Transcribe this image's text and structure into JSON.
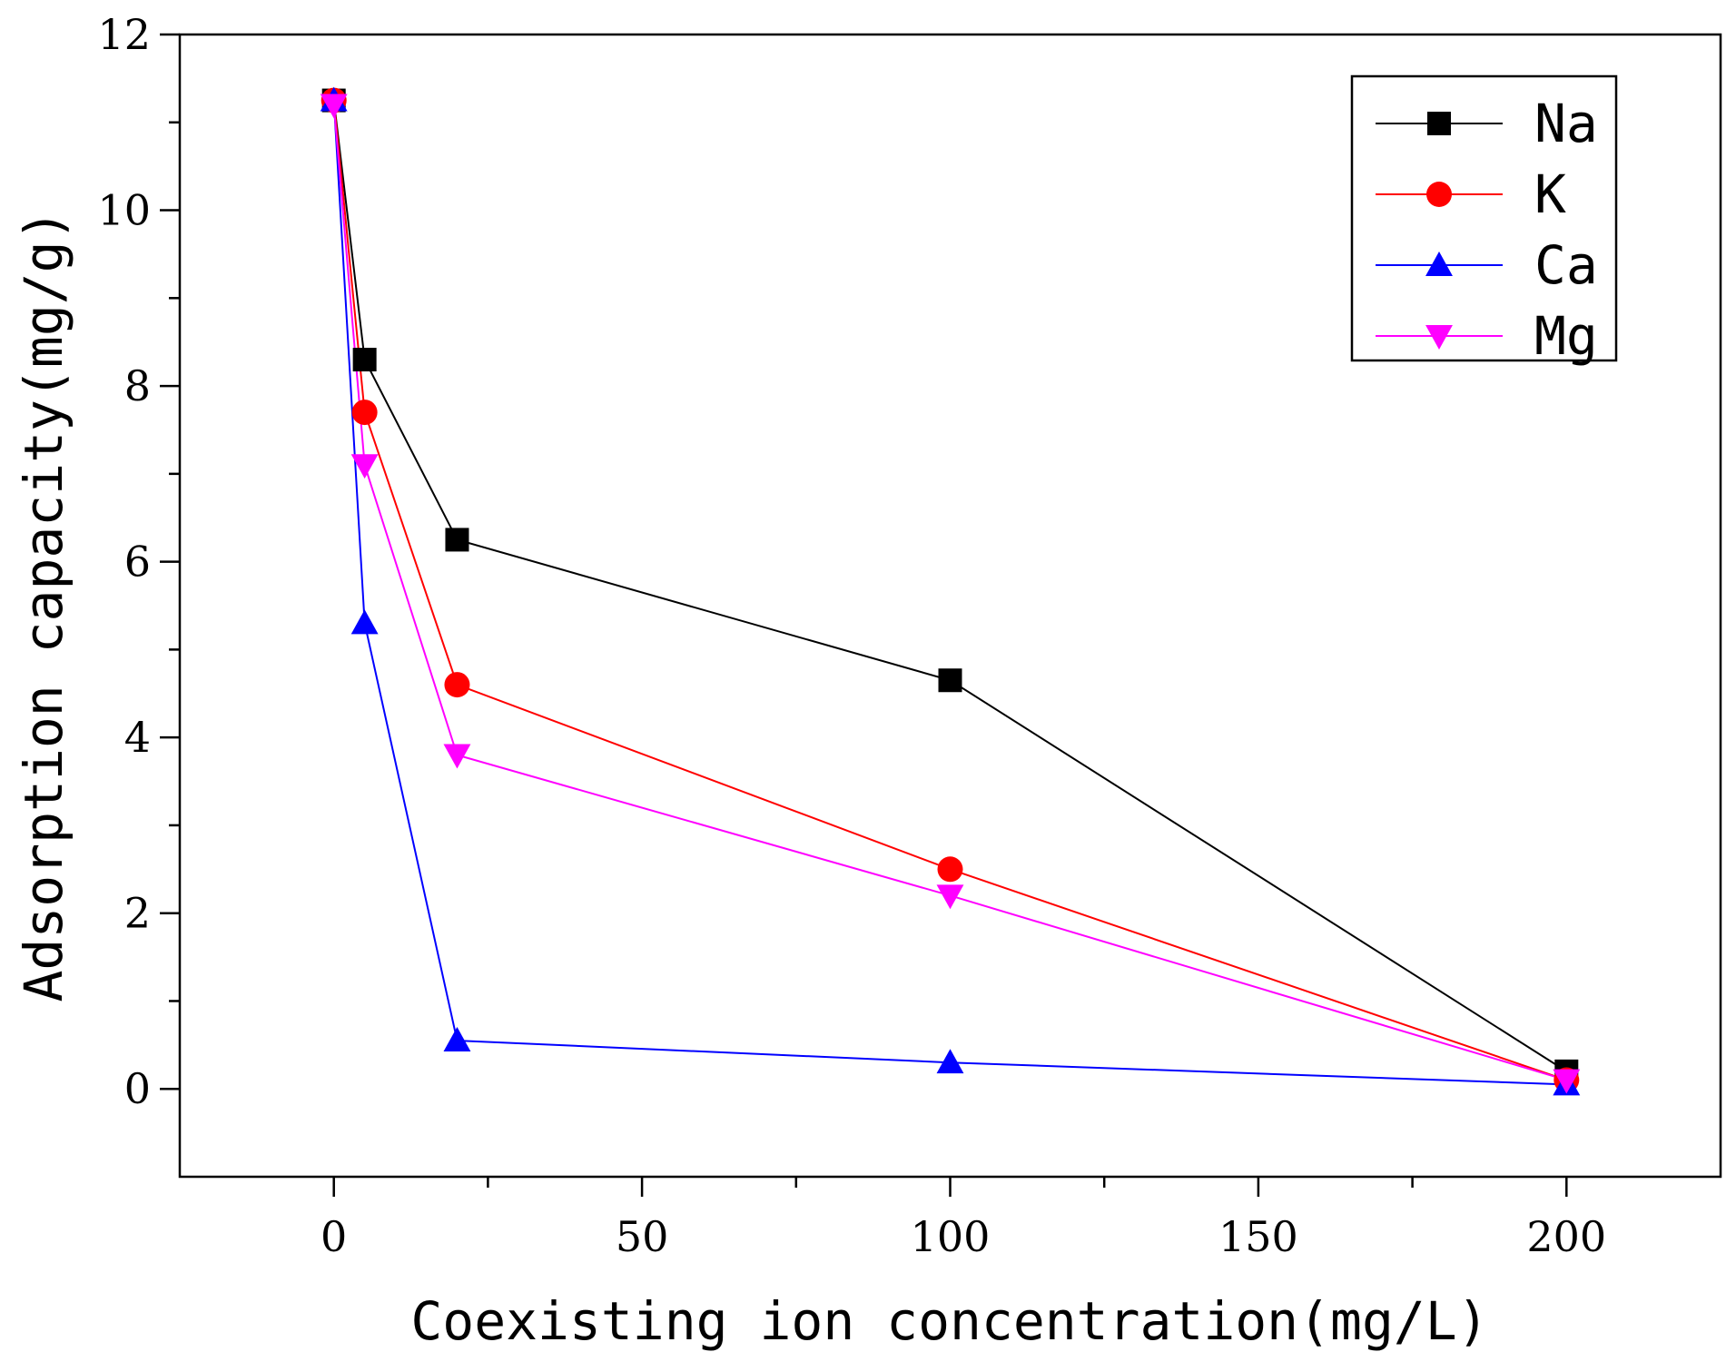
{
  "chart_data": {
    "type": "line",
    "title": "",
    "xlabel": "Coexisting ion concentration(mg/L)",
    "ylabel": "Adsorption capacity(mg/g)",
    "xlim": [
      -25,
      225
    ],
    "ylim": [
      -1,
      12
    ],
    "xticks": [
      0,
      50,
      100,
      150,
      200
    ],
    "yticks": [
      0,
      2,
      4,
      6,
      8,
      10,
      12
    ],
    "xtick_labels": [
      "0",
      "50",
      "100",
      "150",
      "200"
    ],
    "ytick_labels": [
      "0",
      "2",
      "4",
      "6",
      "8",
      "10",
      "12"
    ],
    "grid": false,
    "legend_position": "top-right",
    "x": [
      0,
      5,
      20,
      100,
      200
    ],
    "series": [
      {
        "name": "Na",
        "color": "#000000",
        "marker": "square",
        "values": [
          11.25,
          8.3,
          6.25,
          4.65,
          0.2
        ]
      },
      {
        "name": "K",
        "color": "#ff0000",
        "marker": "circle",
        "values": [
          11.25,
          7.7,
          4.6,
          2.5,
          0.1
        ]
      },
      {
        "name": "Ca",
        "color": "#0000ff",
        "marker": "triangle-up",
        "values": [
          11.25,
          5.3,
          0.55,
          0.3,
          0.05
        ]
      },
      {
        "name": "Mg",
        "color": "#ff00ff",
        "marker": "triangle-down",
        "values": [
          11.2,
          7.1,
          3.8,
          2.2,
          0.1
        ]
      }
    ]
  }
}
